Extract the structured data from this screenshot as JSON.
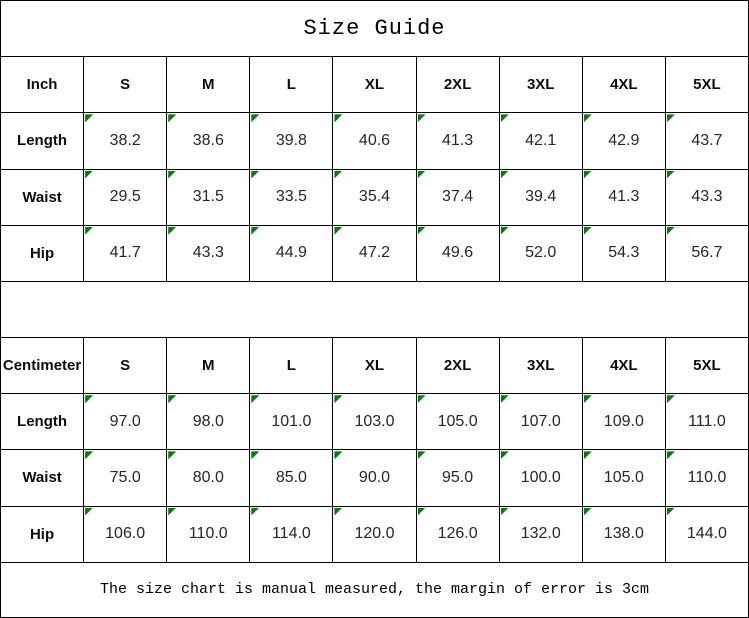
{
  "page": {
    "title": "Size Guide",
    "footer_note": "The size chart is manual measured, the margin of error is 3cm"
  },
  "sizes": [
    "S",
    "M",
    "L",
    "XL",
    "2XL",
    "3XL",
    "4XL",
    "5XL"
  ],
  "inch": {
    "unit_label": "Inch",
    "rows": [
      {
        "label": "Length",
        "values": [
          "38.2",
          "38.6",
          "39.8",
          "40.6",
          "41.3",
          "42.1",
          "42.9",
          "43.7"
        ]
      },
      {
        "label": "Waist",
        "values": [
          "29.5",
          "31.5",
          "33.5",
          "35.4",
          "37.4",
          "39.4",
          "41.3",
          "43.3"
        ]
      },
      {
        "label": "Hip",
        "values": [
          "41.7",
          "43.3",
          "44.9",
          "47.2",
          "49.6",
          "52.0",
          "54.3",
          "56.7"
        ]
      }
    ]
  },
  "centimeter": {
    "unit_label": "Centimeter",
    "rows": [
      {
        "label": "Length",
        "values": [
          "97.0",
          "98.0",
          "101.0",
          "103.0",
          "105.0",
          "107.0",
          "109.0",
          "111.0"
        ]
      },
      {
        "label": "Waist",
        "values": [
          "75.0",
          "80.0",
          "85.0",
          "90.0",
          "95.0",
          "100.0",
          "105.0",
          "110.0"
        ]
      },
      {
        "label": "Hip",
        "values": [
          "106.0",
          "110.0",
          "114.0",
          "120.0",
          "126.0",
          "132.0",
          "138.0",
          "144.0"
        ]
      }
    ]
  },
  "colors": {
    "grid_border": "#000000",
    "cell_flag_triangle": "#008000"
  }
}
